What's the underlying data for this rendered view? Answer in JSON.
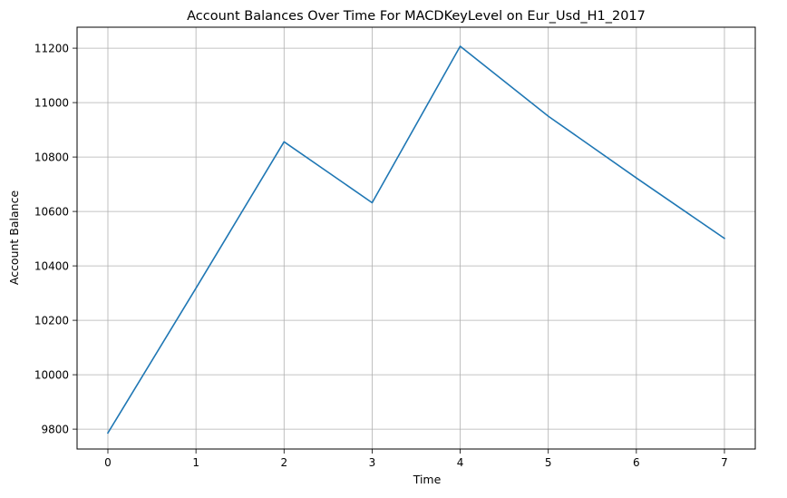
{
  "chart_data": {
    "type": "line",
    "title": "Account Balances Over Time For MACDKeyLevel on Eur_Usd_H1_2017",
    "xlabel": "Time",
    "ylabel": "Account Balance",
    "x": [
      0,
      1,
      2,
      3,
      4,
      5,
      6,
      7
    ],
    "series": [
      {
        "values": [
          9786,
          10318,
          10856,
          10632,
          11207,
          10950,
          10723,
          10501
        ],
        "color": "#1f77b4"
      }
    ],
    "xlim": [
      -0.35,
      7.35
    ],
    "ylim": [
      9727,
      11277
    ],
    "x_ticks": [
      "0",
      "1",
      "2",
      "3",
      "4",
      "5",
      "6",
      "7"
    ],
    "y_ticks": [
      "9800",
      "10000",
      "10200",
      "10400",
      "10600",
      "10800",
      "11000",
      "11200"
    ],
    "grid": true,
    "grid_color": "#b0b0b0"
  }
}
